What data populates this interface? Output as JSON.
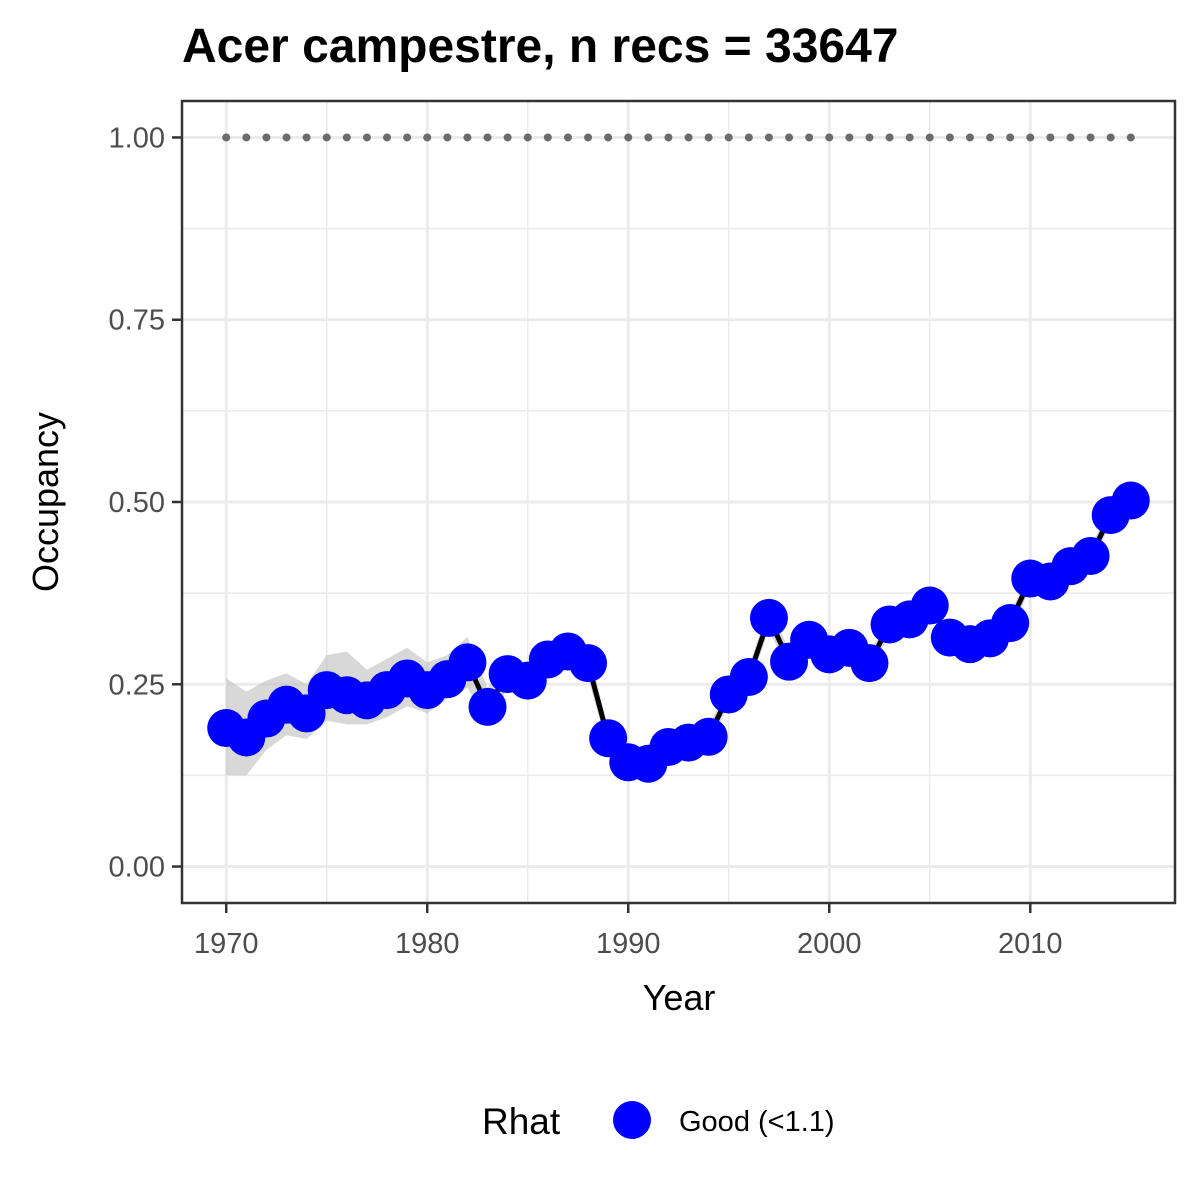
{
  "chart_data": {
    "type": "line",
    "title": "Acer campestre, n recs = 33647",
    "xlabel": "Year",
    "ylabel": "Occupancy",
    "xlim": [
      1967.8,
      2017.2
    ],
    "ylim": [
      -0.05,
      1.05
    ],
    "x_ticks": [
      1970,
      1980,
      1990,
      2000,
      2010
    ],
    "x_tick_labels": [
      "1970",
      "1980",
      "1990",
      "2000",
      "2010"
    ],
    "y_ticks": [
      0,
      0.25,
      0.5,
      0.75,
      1.0
    ],
    "y_tick_labels": [
      "0.00",
      "0.25",
      "0.50",
      "0.75",
      "1.00"
    ],
    "grid": true,
    "colors": {
      "points": "#0000ff",
      "line": "#000000",
      "ribbon": "#bebebe",
      "reference": "#6b6b6b",
      "grid": "#ebebeb",
      "border": "#333333"
    },
    "series": [
      {
        "x": [
          1970,
          1971,
          1972,
          1973,
          1974,
          1975,
          1976,
          1977,
          1978,
          1979,
          1980,
          1981,
          1982,
          1983,
          1984,
          1985,
          1986,
          1987,
          1988,
          1989,
          1990,
          1991,
          1992,
          1993,
          1994,
          1995,
          1996,
          1997,
          1998,
          1999,
          2000,
          2001,
          2002,
          2003,
          2004,
          2005,
          2006,
          2007,
          2008,
          2009,
          2010,
          2011,
          2012,
          2013,
          2014,
          2015
        ],
        "values": [
          0.19,
          0.177,
          0.203,
          0.222,
          0.21,
          0.242,
          0.235,
          0.228,
          0.242,
          0.258,
          0.242,
          0.257,
          0.28,
          0.219,
          0.264,
          0.255,
          0.284,
          0.295,
          0.279,
          0.176,
          0.143,
          0.141,
          0.164,
          0.17,
          0.178,
          0.236,
          0.26,
          0.341,
          0.281,
          0.311,
          0.291,
          0.3,
          0.279,
          0.332,
          0.339,
          0.358,
          0.314,
          0.305,
          0.313,
          0.334,
          0.395,
          0.391,
          0.412,
          0.426,
          0.482,
          0.502
        ],
        "lower": [
          0.125,
          0.125,
          0.16,
          0.18,
          0.175,
          0.2,
          0.195,
          0.195,
          0.205,
          0.22,
          0.21,
          0.23,
          0.245,
          0.195,
          0.245,
          0.24,
          0.265,
          0.275,
          0.26,
          0.16,
          0.13,
          0.13,
          0.15,
          0.157,
          0.165,
          0.222,
          0.245,
          0.325,
          0.265,
          0.295,
          0.277,
          0.287,
          0.267,
          0.318,
          0.327,
          0.345,
          0.302,
          0.293,
          0.302,
          0.322,
          0.382,
          0.379,
          0.4,
          0.414,
          0.47,
          0.49
        ],
        "upper": [
          0.258,
          0.24,
          0.255,
          0.265,
          0.25,
          0.29,
          0.295,
          0.27,
          0.285,
          0.3,
          0.28,
          0.29,
          0.315,
          0.245,
          0.285,
          0.275,
          0.305,
          0.315,
          0.3,
          0.19,
          0.16,
          0.155,
          0.18,
          0.185,
          0.192,
          0.25,
          0.275,
          0.357,
          0.297,
          0.327,
          0.306,
          0.314,
          0.292,
          0.346,
          0.352,
          0.371,
          0.327,
          0.317,
          0.325,
          0.347,
          0.408,
          0.403,
          0.425,
          0.438,
          0.495,
          0.515
        ]
      }
    ],
    "reference_line": {
      "x_from": 1970,
      "x_to": 2015,
      "y": 1.0,
      "style": "dotted"
    },
    "legend": {
      "title": "Rhat",
      "placement": "bottom",
      "items": [
        {
          "label": "Good (<1.1)",
          "color": "#0000ff"
        }
      ]
    }
  }
}
